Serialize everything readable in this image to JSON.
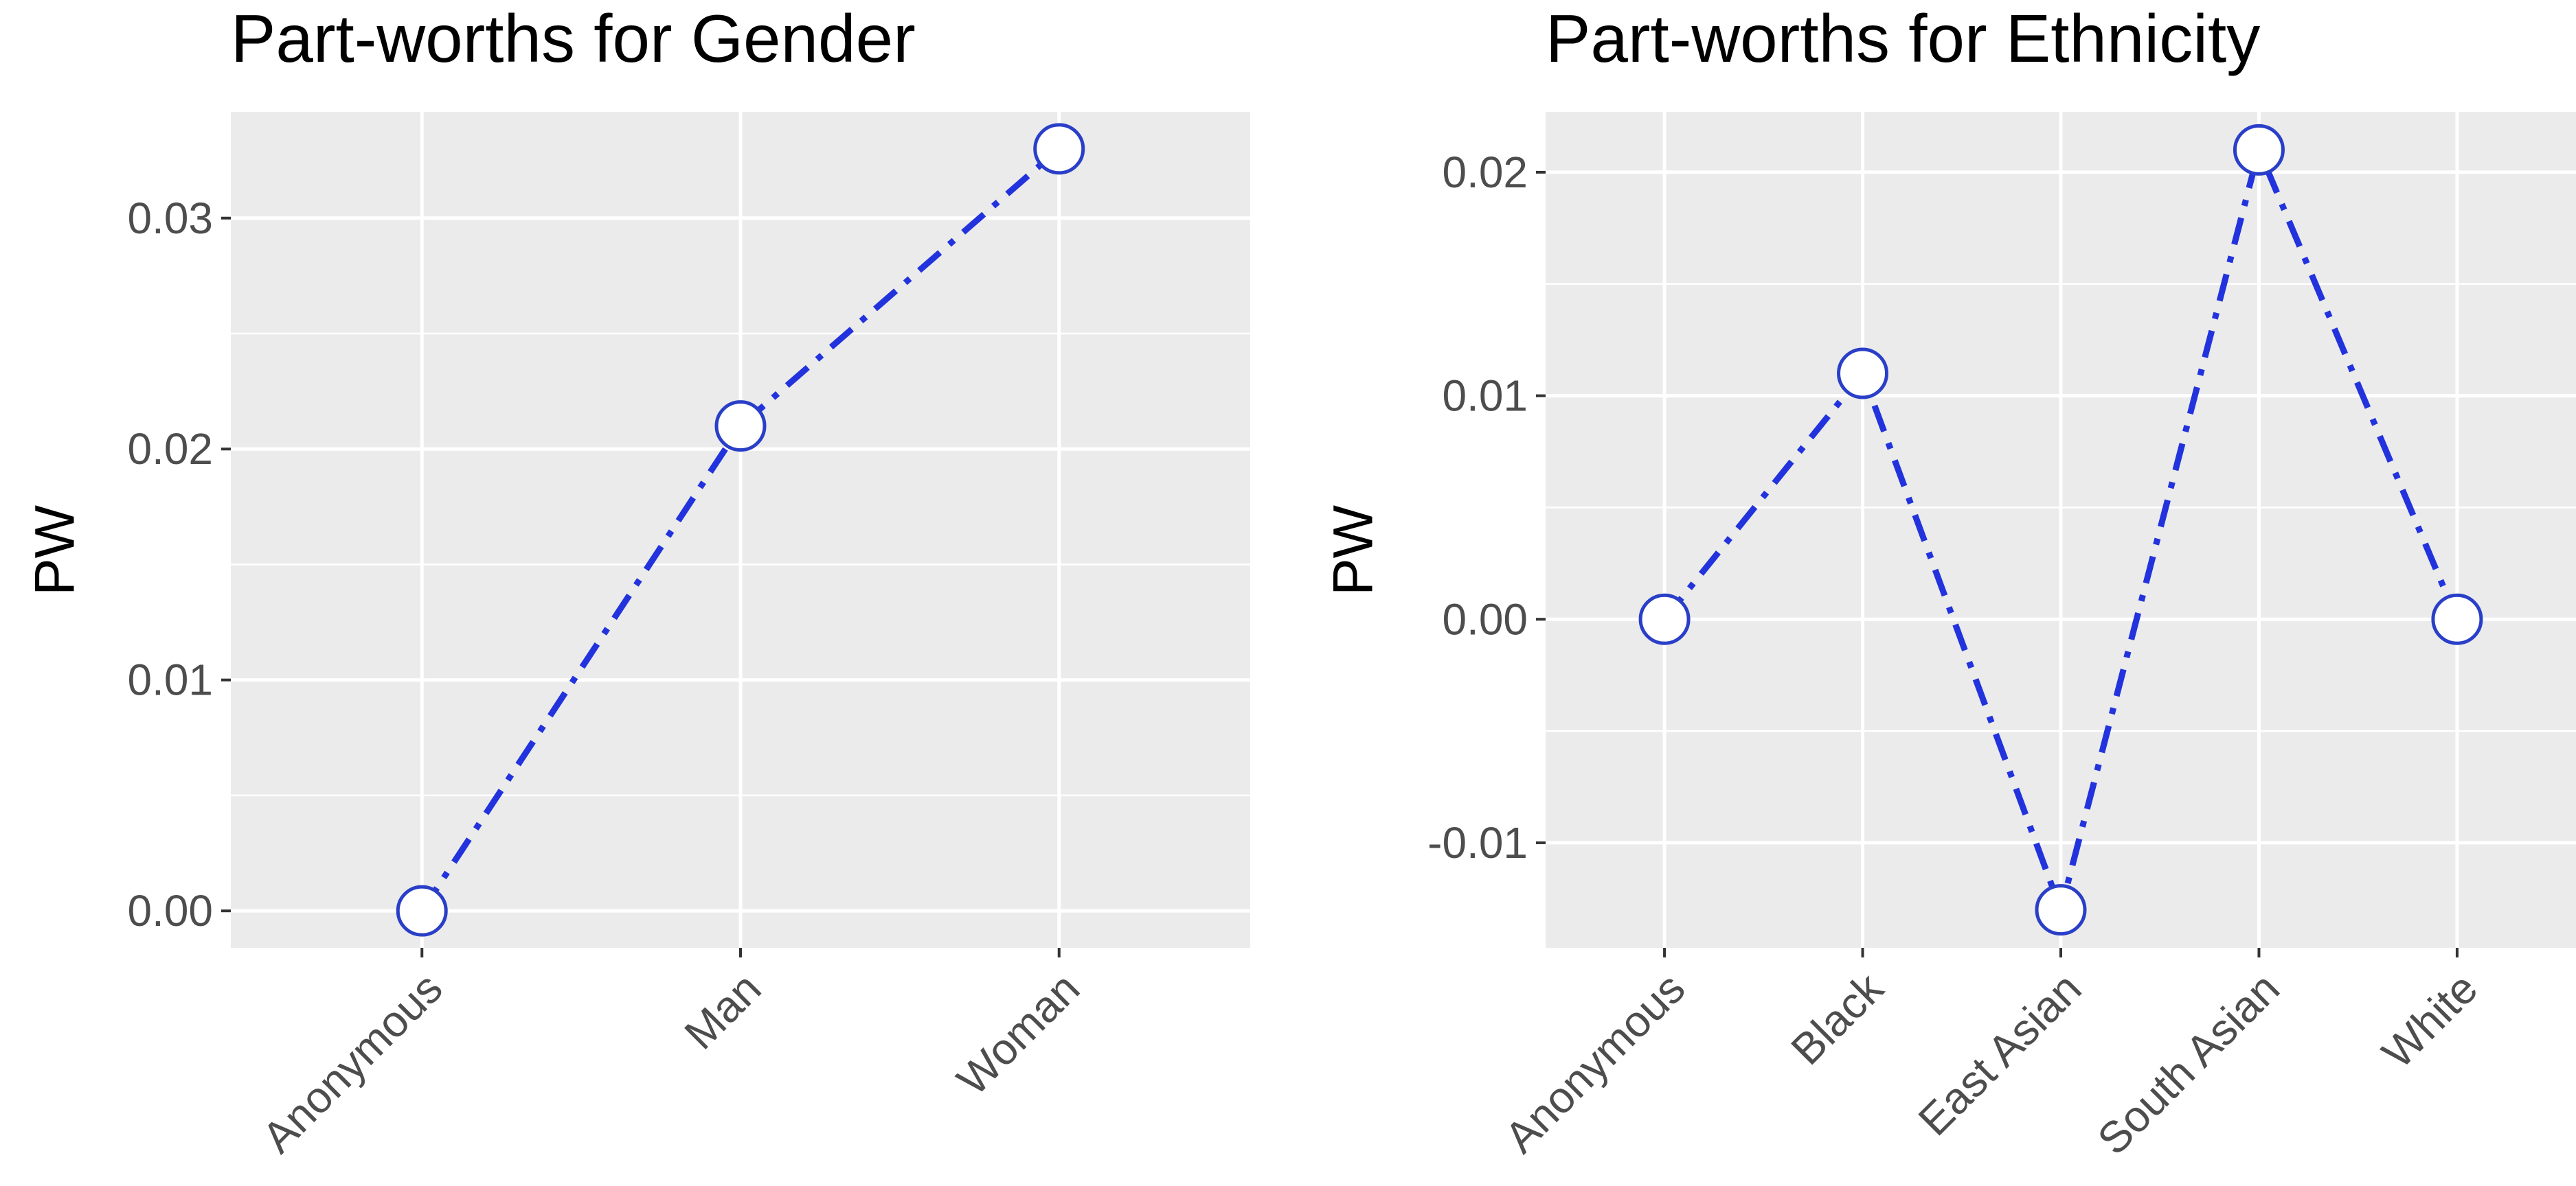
{
  "chart_data": [
    {
      "type": "line",
      "title": "Part-worths for Gender",
      "xlabel": "",
      "ylabel": "PW",
      "categories": [
        "Anonymous",
        "Man",
        "Woman"
      ],
      "series": [
        {
          "values": [
            0.0,
            0.021,
            0.033
          ]
        }
      ],
      "ylim": [
        -0.0016,
        0.0346
      ],
      "yticks": [
        0.0,
        0.01,
        0.02,
        0.03
      ],
      "ytick_labels": [
        "0.00",
        "0.01",
        "0.02",
        "0.03"
      ],
      "grid": true,
      "line_style": "dash-dot",
      "line_color": "#2233dd",
      "marker": "open-circle",
      "panel_background": "#ebebeb"
    },
    {
      "type": "line",
      "title": "Part-worths for Ethnicity",
      "xlabel": "",
      "ylabel": "PW",
      "categories": [
        "Anonymous",
        "Black",
        "East Asian",
        "South Asian",
        "White"
      ],
      "series": [
        {
          "values": [
            0.0,
            0.011,
            -0.013,
            0.021,
            0.0
          ]
        }
      ],
      "ylim": [
        -0.0147,
        0.0227
      ],
      "yticks": [
        -0.01,
        0.0,
        0.01,
        0.02
      ],
      "ytick_labels": [
        "-0.01",
        "0.00",
        "0.01",
        "0.02"
      ],
      "grid": true,
      "line_style": "dash-dot",
      "line_color": "#2233dd",
      "marker": "open-circle",
      "panel_background": "#ebebeb"
    }
  ]
}
